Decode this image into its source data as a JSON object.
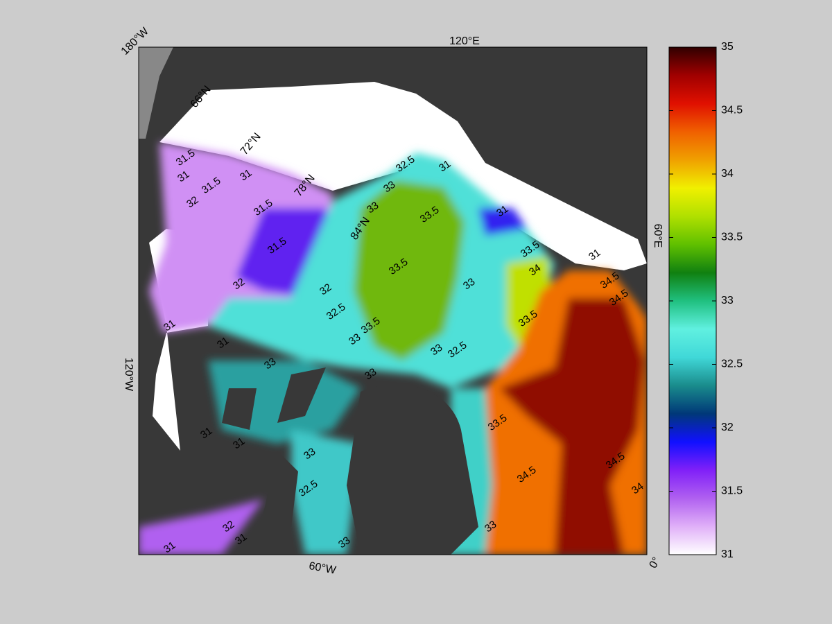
{
  "map": {
    "longitude_labels": [
      "180°W",
      "120°E",
      "60°E",
      "0°",
      "60°W",
      "120°W"
    ],
    "latitude_labels": [
      "66°N",
      "72°N",
      "78°N",
      "84°N"
    ],
    "contour_labels": [
      31.5,
      31,
      31.5,
      31,
      32,
      31.5,
      31.5,
      32,
      32,
      32.5,
      33,
      33.5,
      33.5,
      33.5,
      33,
      33,
      31,
      32.5,
      33,
      31,
      33.5,
      34,
      33.5,
      34.5,
      34.5,
      33,
      32.5,
      33,
      33,
      33,
      32.5,
      33.5,
      34.5,
      34.5,
      34,
      31,
      31,
      32,
      31,
      31,
      33,
      33,
      31,
      31,
      31
    ]
  },
  "colorbar": {
    "range": [
      31,
      35
    ],
    "ticks": [
      31,
      31.5,
      32,
      32.5,
      33,
      33.5,
      34,
      34.5,
      35
    ],
    "colormap": [
      "#ffffff",
      "#e0b0f8",
      "#b060f0",
      "#8020f8",
      "#1010ff",
      "#003878",
      "#1a8c8c",
      "#40d8d8",
      "#60f0e0",
      "#20c080",
      "#108010",
      "#60c000",
      "#b0e000",
      "#f0f000",
      "#f0a000",
      "#f06000",
      "#e01000",
      "#a00000",
      "#300000"
    ]
  }
}
